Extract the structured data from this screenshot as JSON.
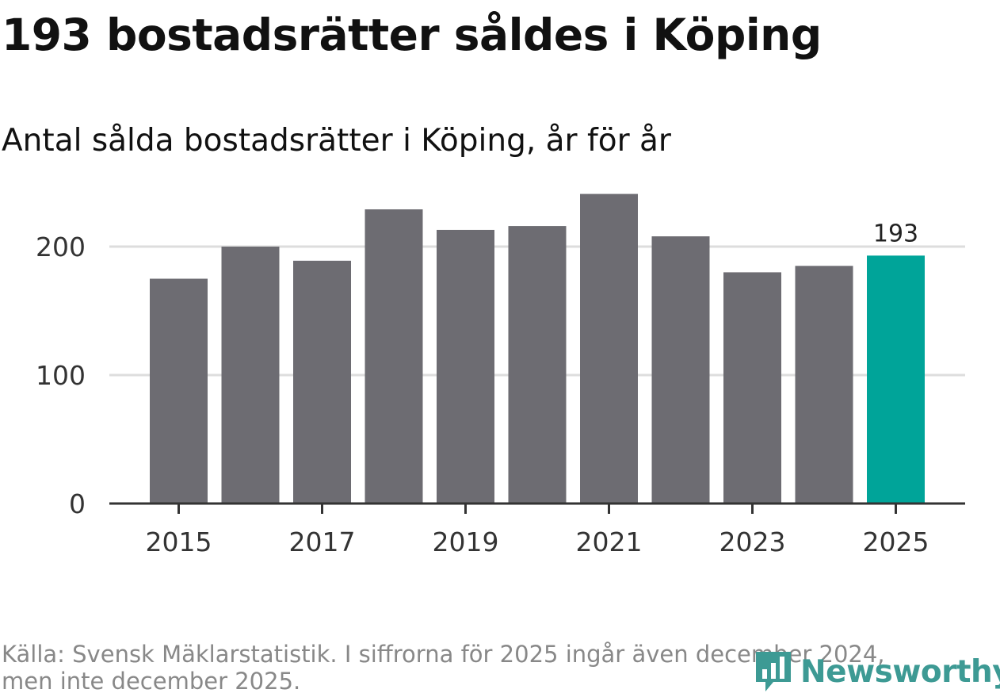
{
  "colors": {
    "bar": "#6d6c72",
    "highlight": "#00a499",
    "grid": "#dddddd",
    "axis": "#333333",
    "brand": "#3d9a94"
  },
  "chart_data": {
    "type": "bar",
    "title": "193 bostadsrätter såldes i Köping",
    "subtitle": "Antal sålda bostadsrätter i Köping, år för år",
    "categories": [
      "2015",
      "2016",
      "2017",
      "2018",
      "2019",
      "2020",
      "2021",
      "2022",
      "2023",
      "2024",
      "2025"
    ],
    "values": [
      175,
      200,
      189,
      229,
      213,
      216,
      241,
      208,
      180,
      185,
      193
    ],
    "highlight_index": 10,
    "highlight_label": "193",
    "x_tick_labels": [
      "2015",
      "2017",
      "2019",
      "2021",
      "2023",
      "2025"
    ],
    "y_ticks": [
      0,
      100,
      200
    ],
    "y_tick_labels": [
      "0",
      "100",
      "200"
    ],
    "ylim": [
      0,
      250
    ],
    "xlabel": "",
    "ylabel": "",
    "grid": true
  },
  "footer": {
    "source_line1": "Källa: Svensk Mäklarstatistik. I siffrorna för 2025 ingår även december 2024,",
    "source_line2": "men inte december 2025."
  },
  "logo": {
    "text": "Newsworthy",
    "icon": "newsworthy-logo-icon"
  }
}
